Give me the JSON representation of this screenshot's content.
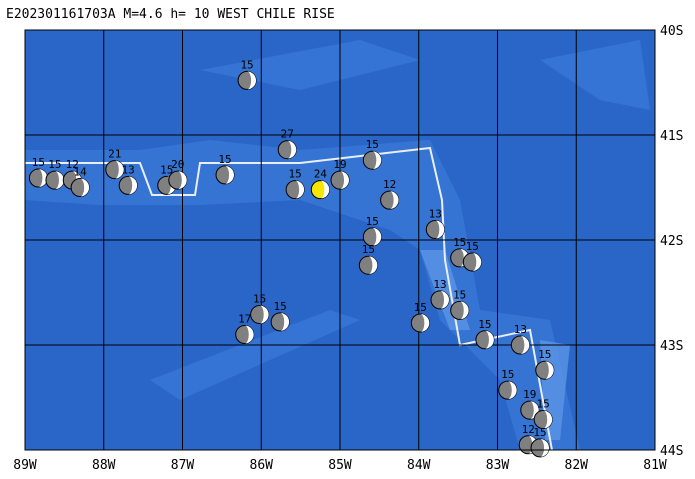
{
  "title": "E202301161703A  M=4.6  h= 10 WEST CHILE RISE",
  "map": {
    "lon_ticks": [
      {
        "value": 89,
        "label": "89W"
      },
      {
        "value": 88,
        "label": "88W"
      },
      {
        "value": 87,
        "label": "87W"
      },
      {
        "value": 86,
        "label": "86W"
      },
      {
        "value": 85,
        "label": "85W"
      },
      {
        "value": 84,
        "label": "84W"
      },
      {
        "value": 83,
        "label": "83W"
      },
      {
        "value": 82,
        "label": "82W"
      },
      {
        "value": 81,
        "label": "81W"
      }
    ],
    "lat_ticks": [
      {
        "value": 40,
        "label": "40S"
      },
      {
        "value": 41,
        "label": "41S"
      },
      {
        "value": 42,
        "label": "42S"
      },
      {
        "value": 43,
        "label": "43S"
      },
      {
        "value": 44,
        "label": "44S"
      }
    ],
    "main_event": {
      "lon": 85.25,
      "lat": 41.52,
      "depth": 24
    },
    "events": [
      {
        "lon": 86.18,
        "lat": 40.48,
        "depth": 15
      },
      {
        "lon": 88.83,
        "lat": 41.41,
        "depth": 15
      },
      {
        "lon": 88.62,
        "lat": 41.43,
        "depth": 15
      },
      {
        "lon": 88.4,
        "lat": 41.43,
        "depth": 12
      },
      {
        "lon": 88.3,
        "lat": 41.5,
        "depth": 14
      },
      {
        "lon": 87.86,
        "lat": 41.33,
        "depth": 21
      },
      {
        "lon": 87.69,
        "lat": 41.48,
        "depth": 13
      },
      {
        "lon": 87.2,
        "lat": 41.48,
        "depth": 15
      },
      {
        "lon": 87.06,
        "lat": 41.43,
        "depth": 20
      },
      {
        "lon": 86.46,
        "lat": 41.38,
        "depth": 15
      },
      {
        "lon": 85.67,
        "lat": 41.14,
        "depth": 27
      },
      {
        "lon": 85.57,
        "lat": 41.52,
        "depth": 15
      },
      {
        "lon": 85.0,
        "lat": 41.43,
        "depth": 19
      },
      {
        "lon": 84.59,
        "lat": 41.24,
        "depth": 15
      },
      {
        "lon": 84.37,
        "lat": 41.62,
        "depth": 12
      },
      {
        "lon": 84.59,
        "lat": 41.97,
        "depth": 15
      },
      {
        "lon": 84.64,
        "lat": 42.24,
        "depth": 15
      },
      {
        "lon": 83.79,
        "lat": 41.9,
        "depth": 13
      },
      {
        "lon": 83.48,
        "lat": 42.17,
        "depth": 15
      },
      {
        "lon": 83.32,
        "lat": 42.21,
        "depth": 15
      },
      {
        "lon": 83.98,
        "lat": 42.79,
        "depth": 15
      },
      {
        "lon": 83.73,
        "lat": 42.57,
        "depth": 13
      },
      {
        "lon": 83.48,
        "lat": 42.67,
        "depth": 15
      },
      {
        "lon": 83.16,
        "lat": 42.95,
        "depth": 15
      },
      {
        "lon": 82.71,
        "lat": 43.0,
        "depth": 13
      },
      {
        "lon": 82.4,
        "lat": 43.24,
        "depth": 15
      },
      {
        "lon": 82.87,
        "lat": 43.43,
        "depth": 15
      },
      {
        "lon": 82.59,
        "lat": 43.62,
        "depth": 19
      },
      {
        "lon": 82.42,
        "lat": 43.71,
        "depth": 15
      },
      {
        "lon": 86.21,
        "lat": 42.9,
        "depth": 17
      },
      {
        "lon": 86.02,
        "lat": 42.71,
        "depth": 15
      },
      {
        "lon": 85.76,
        "lat": 42.78,
        "depth": 15
      },
      {
        "lon": 82.61,
        "lat": 43.95,
        "depth": 12
      },
      {
        "lon": 82.46,
        "lat": 43.98,
        "depth": 15
      }
    ]
  }
}
